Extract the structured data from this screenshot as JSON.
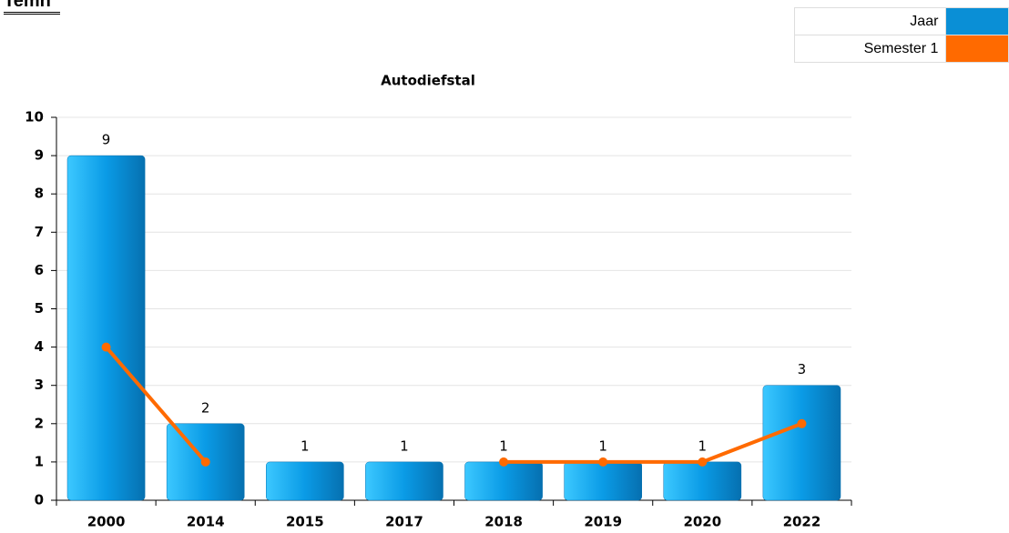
{
  "header": {
    "title": "Temh"
  },
  "chart_data": {
    "type": "bar",
    "title": "Autodiefstal",
    "categories": [
      "2000",
      "2014",
      "2015",
      "2017",
      "2018",
      "2019",
      "2020",
      "2022"
    ],
    "series": [
      {
        "name": "Jaar",
        "color": "#0a8fd6",
        "type": "bar",
        "values": [
          9,
          2,
          1,
          1,
          1,
          1,
          1,
          3
        ]
      },
      {
        "name": "Semester 1",
        "color": "#ff6a00",
        "type": "line",
        "values": [
          4,
          1,
          null,
          null,
          1,
          1,
          1,
          2
        ]
      }
    ],
    "ylim": [
      0,
      10
    ],
    "yticks": [
      0,
      1,
      2,
      3,
      4,
      5,
      6,
      7,
      8,
      9,
      10
    ],
    "grid": true
  }
}
